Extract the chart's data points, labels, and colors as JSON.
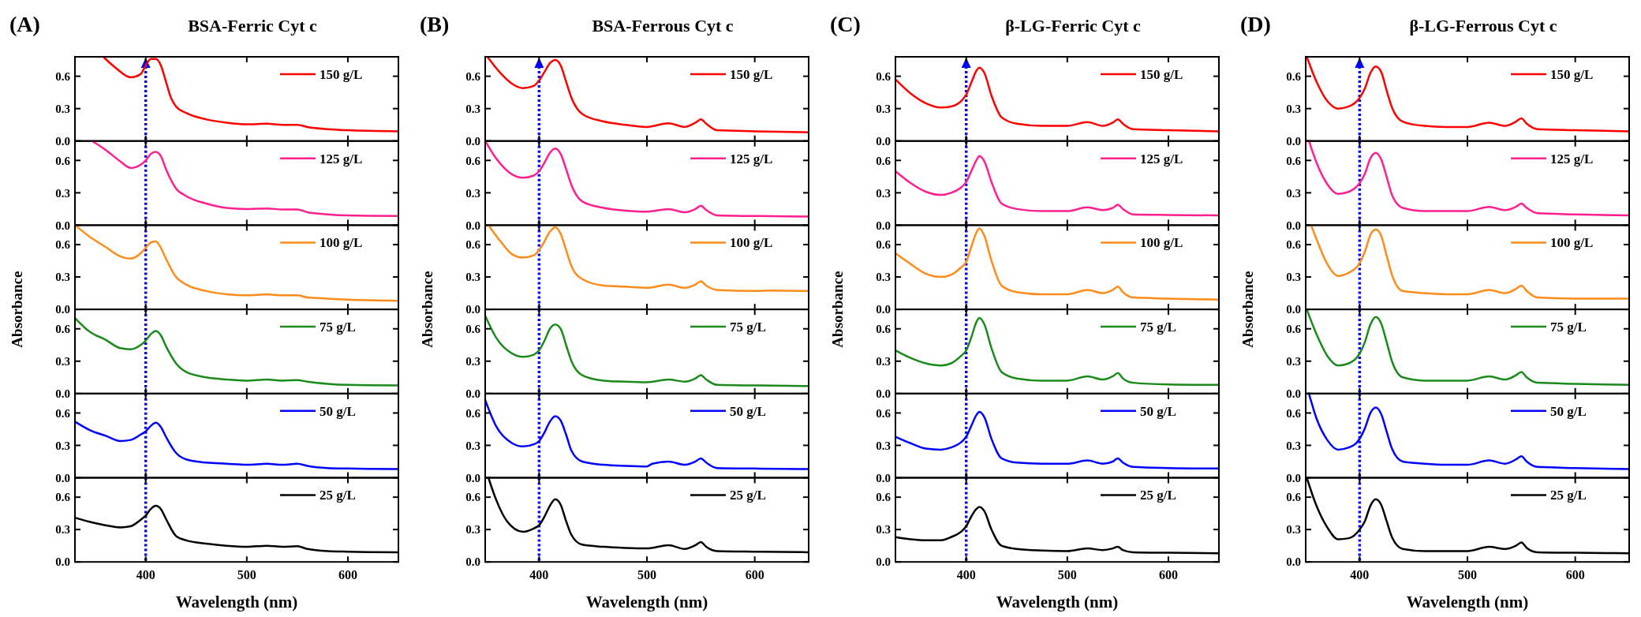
{
  "chart_data": [
    {
      "type": "line",
      "title": "BSA-Ferric Cyt c",
      "annotations": [
        "(A)"
      ],
      "x": [
        358,
        370,
        385,
        395,
        400,
        405,
        410,
        415,
        420,
        425,
        430,
        440,
        460,
        480,
        500,
        520,
        535,
        550,
        560,
        580,
        600,
        650
      ],
      "series": [
        {
          "name": "150 g/L",
          "color": "#ff0000",
          "values": [
            0.78,
            0.68,
            0.59,
            0.62,
            0.7,
            0.76,
            0.76,
            0.7,
            0.55,
            0.4,
            0.32,
            0.26,
            0.2,
            0.17,
            0.155,
            0.16,
            0.15,
            0.15,
            0.13,
            0.11,
            0.1,
            0.09
          ]
        }
      ],
      "xlim": [
        330,
        650
      ],
      "xticks": [
        400,
        500,
        600
      ],
      "ylim": [
        0,
        0.78
      ],
      "yticks": [
        {
          "value": 0,
          "label": "0.0"
        },
        {
          "value": 0.3,
          "label": "0.3"
        },
        {
          "value": 0.6,
          "label": "0.6"
        }
      ],
      "tick_labels": "y",
      "legend": "top right",
      "ref_lines": [
        {
          "axis": "x",
          "value": 400,
          "color": "#0000ff",
          "line_style": "dotted"
        }
      ]
    },
    {
      "type": "line",
      "x": [
        347,
        360,
        375,
        385,
        395,
        400,
        405,
        410,
        415,
        420,
        430,
        440,
        460,
        480,
        500,
        520,
        535,
        550,
        560,
        580,
        600,
        650
      ],
      "series": [
        {
          "name": "125 g/L",
          "color": "#ff1f8e",
          "values": [
            0.78,
            0.7,
            0.59,
            0.53,
            0.56,
            0.6,
            0.66,
            0.68,
            0.64,
            0.52,
            0.34,
            0.27,
            0.2,
            0.16,
            0.15,
            0.155,
            0.145,
            0.145,
            0.12,
            0.1,
            0.09,
            0.085
          ]
        }
      ],
      "xlim": [
        330,
        650
      ],
      "xticks": [
        400,
        500,
        600
      ],
      "ylim": [
        0,
        0.78
      ],
      "yticks": [
        {
          "value": 0,
          "label": "0.0"
        },
        {
          "value": 0.3,
          "label": "0.3"
        },
        {
          "value": 0.6,
          "label": "0.6"
        }
      ],
      "tick_labels": "y",
      "legend": "top right",
      "ref_lines": [
        {
          "axis": "x",
          "value": 400,
          "color": "#0000ff",
          "line_style": "dotted"
        }
      ]
    },
    {
      "type": "line",
      "ylabel": "Absorbance",
      "x": [
        330,
        345,
        360,
        375,
        385,
        395,
        400,
        405,
        410,
        415,
        420,
        430,
        440,
        460,
        480,
        500,
        520,
        535,
        550,
        560,
        580,
        600,
        650
      ],
      "series": [
        {
          "name": "100 g/L",
          "color": "#ff8c1a",
          "values": [
            0.78,
            0.67,
            0.58,
            0.49,
            0.47,
            0.52,
            0.57,
            0.62,
            0.63,
            0.57,
            0.47,
            0.3,
            0.23,
            0.17,
            0.14,
            0.13,
            0.14,
            0.13,
            0.13,
            0.11,
            0.1,
            0.09,
            0.08
          ]
        }
      ],
      "xlim": [
        330,
        650
      ],
      "xticks": [
        400,
        500,
        600
      ],
      "ylim": [
        0,
        0.78
      ],
      "yticks": [
        {
          "value": 0,
          "label": "0.0"
        },
        {
          "value": 0.3,
          "label": "0.3"
        },
        {
          "value": 0.6,
          "label": "0.6"
        }
      ],
      "tick_labels": "y",
      "legend": "top right",
      "ref_lines": [
        {
          "axis": "x",
          "value": 400,
          "color": "#0000ff",
          "line_style": "dotted"
        }
      ]
    },
    {
      "type": "line",
      "x": [
        330,
        345,
        360,
        375,
        385,
        395,
        400,
        405,
        410,
        415,
        420,
        430,
        440,
        460,
        480,
        500,
        520,
        535,
        550,
        560,
        580,
        600,
        650
      ],
      "series": [
        {
          "name": "75 g/L",
          "color": "#1a8a1a",
          "values": [
            0.7,
            0.57,
            0.5,
            0.42,
            0.41,
            0.45,
            0.49,
            0.55,
            0.58,
            0.54,
            0.44,
            0.28,
            0.2,
            0.15,
            0.13,
            0.12,
            0.13,
            0.12,
            0.125,
            0.11,
            0.09,
            0.08,
            0.075
          ]
        }
      ],
      "xlim": [
        330,
        650
      ],
      "xticks": [
        400,
        500,
        600
      ],
      "ylim": [
        0,
        0.78
      ],
      "yticks": [
        {
          "value": 0,
          "label": "0.0"
        },
        {
          "value": 0.3,
          "label": "0.3"
        },
        {
          "value": 0.6,
          "label": "0.6"
        }
      ],
      "tick_labels": "y",
      "legend": "top right",
      "ref_lines": [
        {
          "axis": "x",
          "value": 400,
          "color": "#0000ff",
          "line_style": "dotted"
        }
      ]
    },
    {
      "type": "line",
      "x": [
        330,
        345,
        360,
        375,
        385,
        395,
        400,
        405,
        410,
        415,
        420,
        430,
        440,
        460,
        480,
        500,
        520,
        535,
        550,
        560,
        580,
        600,
        650
      ],
      "series": [
        {
          "name": "50 g/L",
          "color": "#0000ff",
          "values": [
            0.52,
            0.44,
            0.39,
            0.34,
            0.35,
            0.4,
            0.43,
            0.48,
            0.51,
            0.47,
            0.38,
            0.23,
            0.17,
            0.14,
            0.13,
            0.12,
            0.13,
            0.12,
            0.13,
            0.11,
            0.09,
            0.085,
            0.08
          ]
        }
      ],
      "xlim": [
        330,
        650
      ],
      "xticks": [
        400,
        500,
        600
      ],
      "ylim": [
        0,
        0.78
      ],
      "yticks": [
        {
          "value": 0,
          "label": "0.0"
        },
        {
          "value": 0.3,
          "label": "0.3"
        },
        {
          "value": 0.6,
          "label": "0.6"
        }
      ],
      "tick_labels": "y",
      "legend": "top right",
      "ref_lines": [
        {
          "axis": "x",
          "value": 400,
          "color": "#0000ff",
          "line_style": "dotted"
        }
      ]
    },
    {
      "type": "line",
      "xlabel": "Wavelength (nm)",
      "x": [
        330,
        345,
        360,
        375,
        385,
        395,
        400,
        405,
        410,
        415,
        420,
        430,
        440,
        460,
        480,
        500,
        520,
        535,
        550,
        560,
        580,
        600,
        650
      ],
      "series": [
        {
          "name": "25 g/L",
          "color": "#000000",
          "values": [
            0.41,
            0.37,
            0.34,
            0.32,
            0.33,
            0.39,
            0.43,
            0.49,
            0.52,
            0.49,
            0.4,
            0.24,
            0.2,
            0.17,
            0.15,
            0.14,
            0.15,
            0.14,
            0.145,
            0.12,
            0.1,
            0.095,
            0.09
          ]
        }
      ],
      "xlim": [
        330,
        650
      ],
      "xticks": [
        400,
        500,
        600
      ],
      "ylim": [
        0,
        0.78
      ],
      "yticks": [
        {
          "value": 0,
          "label": "0.0"
        },
        {
          "value": 0.3,
          "label": "0.3"
        },
        {
          "value": 0.6,
          "label": "0.6"
        }
      ],
      "legend": "top right",
      "ref_lines": [
        {
          "axis": "x",
          "value": 400,
          "color": "#0000ff",
          "line_style": "dotted"
        }
      ]
    },
    {
      "type": "line",
      "title": "BSA-Ferrous Cyt c",
      "annotations": [
        "(B)"
      ],
      "x": [
        352,
        365,
        375,
        385,
        395,
        400,
        405,
        410,
        415,
        420,
        425,
        430,
        440,
        460,
        480,
        500,
        520,
        535,
        545,
        550,
        555,
        565,
        600,
        650
      ],
      "series": [
        {
          "name": "150 g/L",
          "color": "#ff0000",
          "values": [
            0.78,
            0.62,
            0.53,
            0.49,
            0.51,
            0.56,
            0.64,
            0.72,
            0.75,
            0.7,
            0.55,
            0.4,
            0.25,
            0.18,
            0.15,
            0.13,
            0.165,
            0.13,
            0.17,
            0.2,
            0.16,
            0.1,
            0.09,
            0.08
          ]
        }
      ],
      "xlim": [
        350,
        650
      ],
      "xticks": [
        400,
        500,
        600
      ],
      "ylim": [
        0,
        0.78
      ],
      "yticks": [
        {
          "value": 0,
          "label": "0.0"
        },
        {
          "value": 0.3,
          "label": "0.3"
        },
        {
          "value": 0.6,
          "label": "0.6"
        }
      ],
      "tick_labels": "y",
      "legend": "top right",
      "ref_lines": [
        {
          "axis": "x",
          "value": 400,
          "color": "#0000ff",
          "line_style": "dotted"
        }
      ]
    },
    {
      "type": "line",
      "x": [
        350,
        360,
        375,
        385,
        395,
        400,
        405,
        410,
        415,
        420,
        425,
        430,
        440,
        460,
        480,
        500,
        520,
        535,
        545,
        550,
        555,
        565,
        600,
        650
      ],
      "series": [
        {
          "name": "125 g/L",
          "color": "#ff1f8e",
          "values": [
            0.78,
            0.62,
            0.47,
            0.44,
            0.46,
            0.5,
            0.58,
            0.67,
            0.71,
            0.66,
            0.52,
            0.37,
            0.22,
            0.16,
            0.135,
            0.125,
            0.15,
            0.12,
            0.15,
            0.18,
            0.14,
            0.09,
            0.085,
            0.08
          ]
        }
      ],
      "xlim": [
        350,
        650
      ],
      "xticks": [
        400,
        500,
        600
      ],
      "ylim": [
        0,
        0.78
      ],
      "yticks": [
        {
          "value": 0,
          "label": "0.0"
        },
        {
          "value": 0.3,
          "label": "0.3"
        },
        {
          "value": 0.6,
          "label": "0.6"
        }
      ],
      "tick_labels": "y",
      "legend": "top right",
      "ref_lines": [
        {
          "axis": "x",
          "value": 400,
          "color": "#0000ff",
          "line_style": "dotted"
        }
      ]
    },
    {
      "type": "line",
      "ylabel": "Absorbance",
      "x": [
        353,
        365,
        375,
        385,
        395,
        400,
        405,
        410,
        415,
        420,
        425,
        430,
        440,
        460,
        480,
        500,
        520,
        535,
        545,
        550,
        555,
        565,
        600,
        615,
        650
      ],
      "series": [
        {
          "name": "100 g/L",
          "color": "#ff8c1a",
          "values": [
            0.78,
            0.62,
            0.51,
            0.48,
            0.5,
            0.55,
            0.63,
            0.72,
            0.76,
            0.7,
            0.55,
            0.4,
            0.28,
            0.22,
            0.21,
            0.2,
            0.23,
            0.2,
            0.23,
            0.26,
            0.22,
            0.18,
            0.17,
            0.175,
            0.17
          ]
        }
      ],
      "xlim": [
        350,
        650
      ],
      "xticks": [
        400,
        500,
        600
      ],
      "ylim": [
        0,
        0.78
      ],
      "yticks": [
        {
          "value": 0,
          "label": "0.0"
        },
        {
          "value": 0.3,
          "label": "0.3"
        },
        {
          "value": 0.6,
          "label": "0.6"
        }
      ],
      "tick_labels": "y",
      "legend": "top right",
      "ref_lines": [
        {
          "axis": "x",
          "value": 400,
          "color": "#0000ff",
          "line_style": "dotted"
        }
      ]
    },
    {
      "type": "line",
      "x": [
        350,
        360,
        375,
        385,
        395,
        400,
        405,
        410,
        415,
        420,
        425,
        430,
        440,
        460,
        480,
        500,
        520,
        535,
        545,
        550,
        555,
        565,
        600,
        650
      ],
      "series": [
        {
          "name": "75 g/L",
          "color": "#1a8a1a",
          "values": [
            0.72,
            0.52,
            0.37,
            0.34,
            0.36,
            0.4,
            0.49,
            0.6,
            0.64,
            0.6,
            0.45,
            0.3,
            0.17,
            0.12,
            0.11,
            0.105,
            0.13,
            0.11,
            0.14,
            0.17,
            0.13,
            0.08,
            0.075,
            0.07
          ]
        }
      ],
      "xlim": [
        350,
        650
      ],
      "xticks": [
        400,
        500,
        600
      ],
      "ylim": [
        0,
        0.78
      ],
      "yticks": [
        {
          "value": 0,
          "label": "0.0"
        },
        {
          "value": 0.3,
          "label": "0.3"
        },
        {
          "value": 0.6,
          "label": "0.6"
        }
      ],
      "tick_labels": "y",
      "legend": "top right",
      "ref_lines": [
        {
          "axis": "x",
          "value": 400,
          "color": "#0000ff",
          "line_style": "dotted"
        }
      ]
    },
    {
      "type": "line",
      "x": [
        350,
        360,
        375,
        385,
        395,
        400,
        405,
        410,
        415,
        420,
        425,
        430,
        440,
        460,
        480,
        500,
        505,
        520,
        535,
        545,
        550,
        555,
        565,
        600,
        650
      ],
      "series": [
        {
          "name": "50 g/L",
          "color": "#0000ff",
          "values": [
            0.72,
            0.48,
            0.32,
            0.29,
            0.31,
            0.34,
            0.42,
            0.52,
            0.57,
            0.53,
            0.4,
            0.25,
            0.15,
            0.12,
            0.11,
            0.105,
            0.13,
            0.15,
            0.12,
            0.15,
            0.18,
            0.14,
            0.09,
            0.085,
            0.08
          ]
        }
      ],
      "xlim": [
        350,
        650
      ],
      "xticks": [
        400,
        500,
        600
      ],
      "ylim": [
        0,
        0.78
      ],
      "yticks": [
        {
          "value": 0,
          "label": "0.0"
        },
        {
          "value": 0.3,
          "label": "0.3"
        },
        {
          "value": 0.6,
          "label": "0.6"
        }
      ],
      "tick_labels": "y",
      "legend": "top right",
      "ref_lines": [
        {
          "axis": "x",
          "value": 400,
          "color": "#0000ff",
          "line_style": "dotted"
        }
      ]
    },
    {
      "type": "line",
      "xlabel": "Wavelength (nm)",
      "x": [
        353,
        360,
        370,
        385,
        395,
        400,
        405,
        410,
        415,
        420,
        425,
        430,
        440,
        460,
        480,
        500,
        520,
        535,
        545,
        550,
        555,
        565,
        600,
        650
      ],
      "series": [
        {
          "name": "25 g/L",
          "color": "#000000",
          "values": [
            0.78,
            0.58,
            0.38,
            0.28,
            0.31,
            0.34,
            0.42,
            0.52,
            0.58,
            0.53,
            0.38,
            0.25,
            0.16,
            0.14,
            0.13,
            0.125,
            0.155,
            0.12,
            0.155,
            0.185,
            0.14,
            0.1,
            0.095,
            0.09
          ]
        }
      ],
      "xlim": [
        350,
        650
      ],
      "xticks": [
        400,
        500,
        600
      ],
      "ylim": [
        0,
        0.78
      ],
      "yticks": [
        {
          "value": 0,
          "label": "0.0"
        },
        {
          "value": 0.3,
          "label": "0.3"
        },
        {
          "value": 0.6,
          "label": "0.6"
        }
      ],
      "legend": "top right",
      "ref_lines": [
        {
          "axis": "x",
          "value": 400,
          "color": "#0000ff",
          "line_style": "dotted"
        }
      ]
    },
    {
      "type": "line",
      "title": "β-LG-Ferric Cyt c",
      "annotations": [
        "(C)"
      ],
      "x": [
        330,
        345,
        360,
        375,
        385,
        395,
        400,
        405,
        410,
        413,
        418,
        425,
        435,
        450,
        475,
        500,
        520,
        535,
        545,
        550,
        555,
        565,
        600,
        650
      ],
      "series": [
        {
          "name": "150 g/L",
          "color": "#ff0000",
          "values": [
            0.57,
            0.44,
            0.35,
            0.31,
            0.32,
            0.37,
            0.43,
            0.54,
            0.65,
            0.68,
            0.63,
            0.42,
            0.22,
            0.16,
            0.14,
            0.14,
            0.175,
            0.14,
            0.17,
            0.2,
            0.16,
            0.11,
            0.1,
            0.09
          ]
        }
      ],
      "xlim": [
        330,
        650
      ],
      "xticks": [
        400,
        500,
        600
      ],
      "ylim": [
        0,
        0.78
      ],
      "yticks": [
        {
          "value": 0,
          "label": "0.0"
        },
        {
          "value": 0.3,
          "label": "0.3"
        },
        {
          "value": 0.6,
          "label": "0.6"
        }
      ],
      "tick_labels": "y",
      "legend": "top right",
      "ref_lines": [
        {
          "axis": "x",
          "value": 400,
          "color": "#0000ff",
          "line_style": "dotted"
        }
      ]
    },
    {
      "type": "line",
      "x": [
        330,
        345,
        360,
        375,
        385,
        395,
        400,
        405,
        410,
        413,
        418,
        425,
        435,
        450,
        475,
        500,
        520,
        535,
        545,
        550,
        555,
        565,
        600,
        650
      ],
      "series": [
        {
          "name": "125 g/L",
          "color": "#ff1f8e",
          "values": [
            0.5,
            0.39,
            0.31,
            0.28,
            0.3,
            0.35,
            0.4,
            0.5,
            0.6,
            0.64,
            0.59,
            0.4,
            0.2,
            0.15,
            0.13,
            0.13,
            0.165,
            0.14,
            0.16,
            0.19,
            0.15,
            0.1,
            0.095,
            0.09
          ]
        }
      ],
      "xlim": [
        330,
        650
      ],
      "xticks": [
        400,
        500,
        600
      ],
      "ylim": [
        0,
        0.78
      ],
      "yticks": [
        {
          "value": 0,
          "label": "0.0"
        },
        {
          "value": 0.3,
          "label": "0.3"
        },
        {
          "value": 0.6,
          "label": "0.6"
        }
      ],
      "tick_labels": "y",
      "legend": "top right",
      "ref_lines": [
        {
          "axis": "x",
          "value": 400,
          "color": "#0000ff",
          "line_style": "dotted"
        }
      ]
    },
    {
      "type": "line",
      "ylabel": "Absorbance",
      "x": [
        330,
        345,
        360,
        375,
        385,
        395,
        400,
        405,
        410,
        413,
        418,
        425,
        435,
        450,
        475,
        500,
        520,
        535,
        545,
        550,
        555,
        565,
        600,
        650
      ],
      "series": [
        {
          "name": "100 g/L",
          "color": "#ff8c1a",
          "values": [
            0.52,
            0.42,
            0.33,
            0.3,
            0.32,
            0.39,
            0.44,
            0.58,
            0.71,
            0.75,
            0.68,
            0.45,
            0.22,
            0.16,
            0.14,
            0.14,
            0.18,
            0.15,
            0.18,
            0.21,
            0.16,
            0.11,
            0.1,
            0.09
          ]
        }
      ],
      "xlim": [
        330,
        650
      ],
      "xticks": [
        400,
        500,
        600
      ],
      "ylim": [
        0,
        0.78
      ],
      "yticks": [
        {
          "value": 0,
          "label": "0.0"
        },
        {
          "value": 0.3,
          "label": "0.3"
        },
        {
          "value": 0.6,
          "label": "0.6"
        }
      ],
      "tick_labels": "y",
      "legend": "top right",
      "ref_lines": [
        {
          "axis": "x",
          "value": 400,
          "color": "#0000ff",
          "line_style": "dotted"
        }
      ]
    },
    {
      "type": "line",
      "x": [
        330,
        345,
        360,
        375,
        385,
        395,
        400,
        405,
        410,
        413,
        418,
        425,
        435,
        450,
        475,
        500,
        520,
        535,
        545,
        550,
        555,
        565,
        600,
        650
      ],
      "series": [
        {
          "name": "75 g/L",
          "color": "#1a8a1a",
          "values": [
            0.4,
            0.33,
            0.28,
            0.26,
            0.28,
            0.35,
            0.4,
            0.52,
            0.66,
            0.7,
            0.64,
            0.42,
            0.2,
            0.14,
            0.12,
            0.12,
            0.16,
            0.13,
            0.16,
            0.19,
            0.14,
            0.1,
            0.085,
            0.08
          ]
        }
      ],
      "xlim": [
        330,
        650
      ],
      "xticks": [
        400,
        500,
        600
      ],
      "ylim": [
        0,
        0.78
      ],
      "yticks": [
        {
          "value": 0,
          "label": "0.0"
        },
        {
          "value": 0.3,
          "label": "0.3"
        },
        {
          "value": 0.6,
          "label": "0.6"
        }
      ],
      "tick_labels": "y",
      "legend": "top right",
      "ref_lines": [
        {
          "axis": "x",
          "value": 400,
          "color": "#0000ff",
          "line_style": "dotted"
        }
      ]
    },
    {
      "type": "line",
      "x": [
        330,
        345,
        360,
        375,
        385,
        395,
        400,
        405,
        410,
        413,
        418,
        425,
        435,
        450,
        475,
        500,
        520,
        535,
        545,
        550,
        555,
        565,
        600,
        650
      ],
      "series": [
        {
          "name": "50 g/L",
          "color": "#0000ff",
          "values": [
            0.38,
            0.32,
            0.27,
            0.26,
            0.28,
            0.33,
            0.38,
            0.48,
            0.58,
            0.61,
            0.56,
            0.36,
            0.18,
            0.14,
            0.13,
            0.13,
            0.16,
            0.13,
            0.15,
            0.18,
            0.14,
            0.1,
            0.09,
            0.085
          ]
        }
      ],
      "xlim": [
        330,
        650
      ],
      "xticks": [
        400,
        500,
        600
      ],
      "ylim": [
        0,
        0.78
      ],
      "yticks": [
        {
          "value": 0,
          "label": "0.0"
        },
        {
          "value": 0.3,
          "label": "0.3"
        },
        {
          "value": 0.6,
          "label": "0.6"
        }
      ],
      "tick_labels": "y",
      "legend": "top right",
      "ref_lines": [
        {
          "axis": "x",
          "value": 400,
          "color": "#0000ff",
          "line_style": "dotted"
        }
      ]
    },
    {
      "type": "line",
      "xlabel": "Wavelength (nm)",
      "x": [
        330,
        345,
        360,
        375,
        385,
        395,
        400,
        405,
        410,
        413,
        418,
        425,
        435,
        450,
        475,
        500,
        520,
        535,
        545,
        550,
        555,
        565,
        600,
        650
      ],
      "series": [
        {
          "name": "25 g/L",
          "color": "#000000",
          "values": [
            0.23,
            0.21,
            0.2,
            0.2,
            0.23,
            0.28,
            0.33,
            0.42,
            0.49,
            0.51,
            0.47,
            0.3,
            0.15,
            0.12,
            0.105,
            0.1,
            0.125,
            0.11,
            0.125,
            0.14,
            0.11,
            0.09,
            0.085,
            0.08
          ]
        }
      ],
      "xlim": [
        330,
        650
      ],
      "xticks": [
        400,
        500,
        600
      ],
      "ylim": [
        0,
        0.78
      ],
      "yticks": [
        {
          "value": 0,
          "label": "0.0"
        },
        {
          "value": 0.3,
          "label": "0.3"
        },
        {
          "value": 0.6,
          "label": "0.6"
        }
      ],
      "legend": "top right",
      "ref_lines": [
        {
          "axis": "x",
          "value": 400,
          "color": "#0000ff",
          "line_style": "dotted"
        }
      ]
    },
    {
      "type": "line",
      "title": "β-LG-Ferrous Cyt c",
      "annotations": [
        "(D)"
      ],
      "x": [
        351,
        360,
        370,
        380,
        390,
        400,
        405,
        410,
        415,
        420,
        425,
        430,
        440,
        460,
        480,
        500,
        520,
        535,
        545,
        550,
        555,
        565,
        600,
        650
      ],
      "series": [
        {
          "name": "150 g/L",
          "color": "#ff0000",
          "values": [
            0.78,
            0.55,
            0.37,
            0.3,
            0.32,
            0.4,
            0.49,
            0.63,
            0.69,
            0.64,
            0.47,
            0.31,
            0.18,
            0.14,
            0.13,
            0.13,
            0.17,
            0.14,
            0.18,
            0.21,
            0.16,
            0.11,
            0.1,
            0.09
          ]
        }
      ],
      "xlim": [
        350,
        650
      ],
      "xticks": [
        400,
        500,
        600
      ],
      "ylim": [
        0,
        0.78
      ],
      "yticks": [
        {
          "value": 0,
          "label": "0.0"
        },
        {
          "value": 0.3,
          "label": "0.3"
        },
        {
          "value": 0.6,
          "label": "0.6"
        }
      ],
      "tick_labels": "y",
      "legend": "top right",
      "ref_lines": [
        {
          "axis": "x",
          "value": 400,
          "color": "#0000ff",
          "line_style": "dotted"
        }
      ]
    },
    {
      "type": "line",
      "x": [
        353,
        360,
        370,
        380,
        390,
        400,
        405,
        410,
        415,
        420,
        425,
        430,
        440,
        460,
        480,
        500,
        520,
        535,
        545,
        550,
        555,
        565,
        600,
        650
      ],
      "series": [
        {
          "name": "125 g/L",
          "color": "#ff1f8e",
          "values": [
            0.78,
            0.58,
            0.38,
            0.29,
            0.31,
            0.39,
            0.48,
            0.62,
            0.67,
            0.61,
            0.45,
            0.28,
            0.16,
            0.13,
            0.13,
            0.13,
            0.17,
            0.14,
            0.17,
            0.2,
            0.16,
            0.11,
            0.1,
            0.09
          ]
        }
      ],
      "xlim": [
        350,
        650
      ],
      "xticks": [
        400,
        500,
        600
      ],
      "ylim": [
        0,
        0.78
      ],
      "yticks": [
        {
          "value": 0,
          "label": "0.0"
        },
        {
          "value": 0.3,
          "label": "0.3"
        },
        {
          "value": 0.6,
          "label": "0.6"
        }
      ],
      "tick_labels": "y",
      "legend": "top right",
      "ref_lines": [
        {
          "axis": "x",
          "value": 400,
          "color": "#0000ff",
          "line_style": "dotted"
        }
      ]
    },
    {
      "type": "line",
      "ylabel": "Absorbance",
      "x": [
        355,
        362,
        370,
        380,
        390,
        398,
        400,
        405,
        410,
        415,
        420,
        425,
        430,
        440,
        460,
        480,
        500,
        520,
        535,
        545,
        550,
        555,
        565,
        600,
        650
      ],
      "series": [
        {
          "name": "100 g/L",
          "color": "#ff8c1a",
          "values": [
            0.78,
            0.6,
            0.42,
            0.31,
            0.34,
            0.4,
            0.43,
            0.54,
            0.69,
            0.74,
            0.68,
            0.5,
            0.32,
            0.17,
            0.15,
            0.14,
            0.14,
            0.18,
            0.15,
            0.19,
            0.22,
            0.17,
            0.11,
            0.1,
            0.1
          ]
        }
      ],
      "xlim": [
        350,
        650
      ],
      "xticks": [
        400,
        500,
        600
      ],
      "ylim": [
        0,
        0.78
      ],
      "yticks": [
        {
          "value": 0,
          "label": "0.0"
        },
        {
          "value": 0.3,
          "label": "0.3"
        },
        {
          "value": 0.6,
          "label": "0.6"
        }
      ],
      "tick_labels": "y",
      "legend": "top right",
      "ref_lines": [
        {
          "axis": "x",
          "value": 400,
          "color": "#0000ff",
          "line_style": "dotted"
        }
      ]
    },
    {
      "type": "line",
      "x": [
        351,
        360,
        370,
        380,
        390,
        400,
        405,
        410,
        415,
        420,
        425,
        430,
        440,
        460,
        480,
        500,
        520,
        535,
        545,
        550,
        555,
        565,
        600,
        650
      ],
      "series": [
        {
          "name": "75 g/L",
          "color": "#1a8a1a",
          "values": [
            0.78,
            0.55,
            0.35,
            0.26,
            0.28,
            0.37,
            0.48,
            0.64,
            0.71,
            0.65,
            0.48,
            0.3,
            0.15,
            0.12,
            0.12,
            0.12,
            0.16,
            0.13,
            0.17,
            0.2,
            0.15,
            0.1,
            0.09,
            0.08
          ]
        }
      ],
      "xlim": [
        350,
        650
      ],
      "xticks": [
        400,
        500,
        600
      ],
      "ylim": [
        0,
        0.78
      ],
      "yticks": [
        {
          "value": 0,
          "label": "0.0"
        },
        {
          "value": 0.3,
          "label": "0.3"
        },
        {
          "value": 0.6,
          "label": "0.6"
        }
      ],
      "tick_labels": "y",
      "legend": "top right",
      "ref_lines": [
        {
          "axis": "x",
          "value": 400,
          "color": "#0000ff",
          "line_style": "dotted"
        }
      ]
    },
    {
      "type": "line",
      "x": [
        353,
        360,
        370,
        380,
        390,
        400,
        405,
        410,
        415,
        420,
        425,
        430,
        440,
        460,
        480,
        500,
        520,
        535,
        545,
        550,
        555,
        565,
        600,
        650
      ],
      "series": [
        {
          "name": "50 g/L",
          "color": "#0000ff",
          "values": [
            0.78,
            0.55,
            0.35,
            0.26,
            0.28,
            0.36,
            0.46,
            0.6,
            0.65,
            0.59,
            0.43,
            0.27,
            0.15,
            0.13,
            0.12,
            0.12,
            0.16,
            0.13,
            0.17,
            0.2,
            0.15,
            0.1,
            0.09,
            0.08
          ]
        }
      ],
      "xlim": [
        350,
        650
      ],
      "xticks": [
        400,
        500,
        600
      ],
      "ylim": [
        0,
        0.78
      ],
      "yticks": [
        {
          "value": 0,
          "label": "0.0"
        },
        {
          "value": 0.3,
          "label": "0.3"
        },
        {
          "value": 0.6,
          "label": "0.6"
        }
      ],
      "tick_labels": "y",
      "legend": "top right",
      "ref_lines": [
        {
          "axis": "x",
          "value": 400,
          "color": "#0000ff",
          "line_style": "dotted"
        }
      ]
    },
    {
      "type": "line",
      "xlabel": "Wavelength (nm)",
      "x": [
        351,
        360,
        370,
        380,
        390,
        400,
        405,
        410,
        415,
        420,
        425,
        430,
        440,
        460,
        480,
        500,
        520,
        535,
        545,
        550,
        555,
        565,
        600,
        650
      ],
      "series": [
        {
          "name": "25 g/L",
          "color": "#000000",
          "values": [
            0.78,
            0.52,
            0.32,
            0.21,
            0.22,
            0.3,
            0.38,
            0.52,
            0.58,
            0.53,
            0.38,
            0.23,
            0.12,
            0.1,
            0.1,
            0.1,
            0.14,
            0.12,
            0.15,
            0.18,
            0.13,
            0.09,
            0.085,
            0.08
          ]
        }
      ],
      "xlim": [
        350,
        650
      ],
      "xticks": [
        400,
        500,
        600
      ],
      "ylim": [
        0,
        0.78
      ],
      "yticks": [
        {
          "value": 0,
          "label": "0.0"
        },
        {
          "value": 0.3,
          "label": "0.3"
        },
        {
          "value": 0.6,
          "label": "0.6"
        }
      ],
      "legend": "top right",
      "ref_lines": [
        {
          "axis": "x",
          "value": 400,
          "color": "#0000ff",
          "line_style": "dotted"
        }
      ]
    }
  ]
}
